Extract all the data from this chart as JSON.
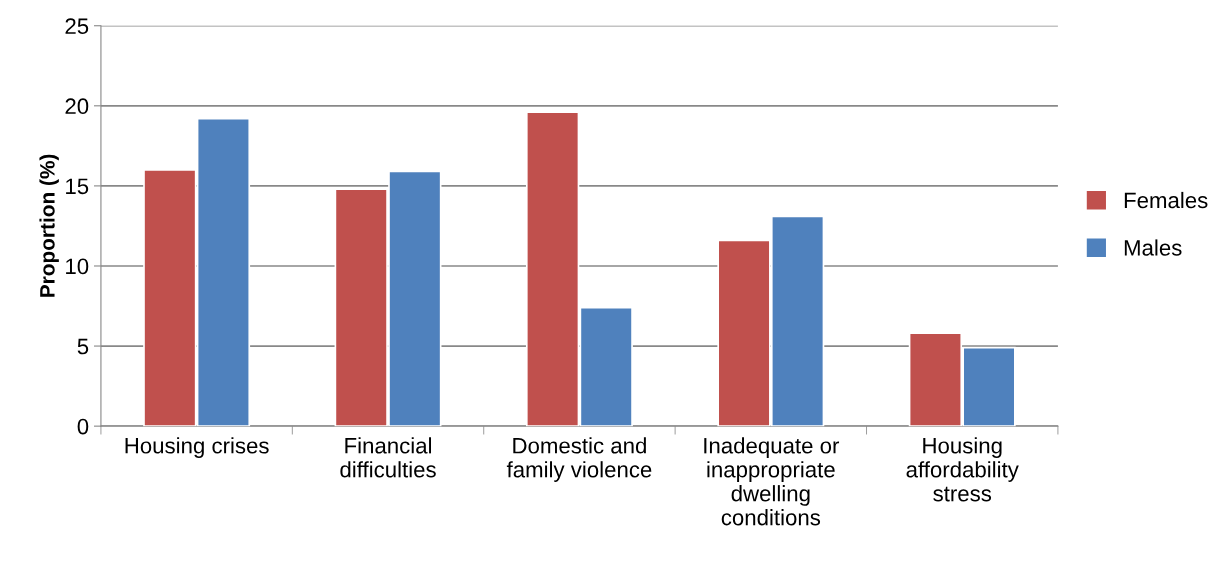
{
  "chart_data": {
    "type": "bar",
    "ylabel": "Proportion (%)",
    "categories": [
      "Housing crises",
      "Financial\ndifficulties",
      "Domestic and\nfamily violence",
      "Inadequate or\ninappropriate\ndwelling\nconditions",
      "Housing\naffordability\nstress"
    ],
    "series": [
      {
        "name": "Females",
        "color": "#c0504d",
        "values": [
          16.0,
          14.8,
          19.6,
          11.6,
          5.8
        ]
      },
      {
        "name": "Males",
        "color": "#4f81bd",
        "values": [
          19.2,
          15.9,
          7.4,
          13.1,
          4.9
        ]
      }
    ],
    "ylim": [
      0,
      25
    ],
    "yticks": [
      0,
      5,
      10,
      15,
      20,
      25
    ],
    "grid": "y",
    "legend": "right"
  }
}
